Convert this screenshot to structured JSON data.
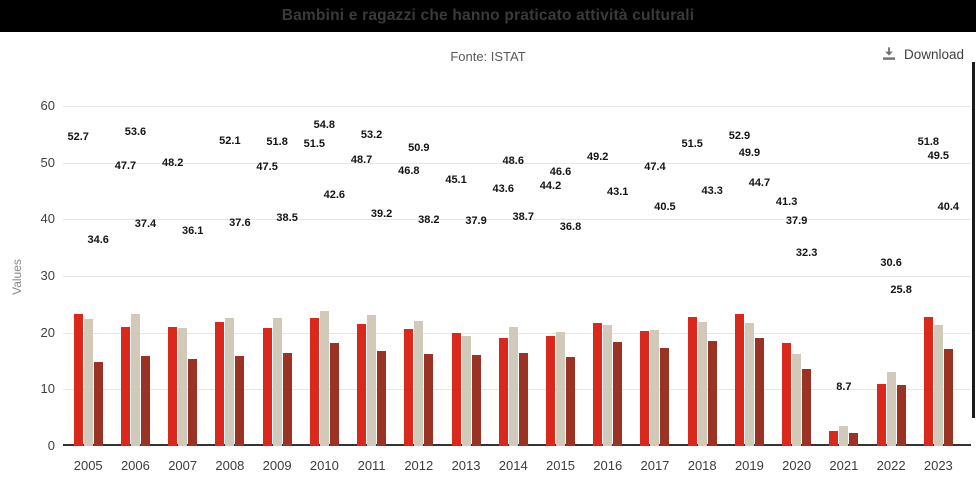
{
  "header": {
    "title": "Bambini e ragazzi che hanno praticato attività culturali",
    "source": "Fonte: ISTAT",
    "download_label": "Download",
    "download_icon": "download-icon"
  },
  "chart_data": {
    "type": "bar",
    "title": "Bambini e ragazzi che hanno praticato attività culturali",
    "xlabel": "",
    "ylabel": "Values",
    "ylim": [
      0,
      60
    ],
    "yticks": [
      0,
      10,
      20,
      30,
      40,
      50,
      60
    ],
    "grid": "horizontal",
    "legend_position": "none",
    "categories": [
      "2005",
      "2006",
      "2007",
      "2008",
      "2009",
      "2010",
      "2011",
      "2012",
      "2013",
      "2014",
      "2015",
      "2016",
      "2017",
      "2018",
      "2019",
      "2020",
      "2021",
      "2022",
      "2023"
    ],
    "series": [
      {
        "name": "series-red",
        "color": "#da291c",
        "bar_values": [
          23.3,
          21.0,
          21.0,
          21.9,
          20.8,
          22.6,
          21.5,
          20.6,
          19.9,
          19.1,
          19.4,
          21.7,
          20.3,
          22.8,
          23.3,
          18.2,
          2.6,
          10.9,
          22.8
        ]
      },
      {
        "name": "series-beige",
        "color": "#d1cabb",
        "bar_values": [
          22.4,
          23.3,
          20.8,
          22.6,
          22.6,
          23.8,
          23.1,
          22.0,
          19.4,
          21.0,
          20.1,
          21.3,
          20.5,
          21.9,
          21.7,
          16.3,
          3.5,
          13.1,
          21.3
        ]
      },
      {
        "name": "series-dark-red",
        "color": "#9a3324",
        "bar_values": [
          14.8,
          15.9,
          15.3,
          15.9,
          16.4,
          18.2,
          16.8,
          16.2,
          16.0,
          16.5,
          15.7,
          18.3,
          17.3,
          18.5,
          19.0,
          13.6,
          2.3,
          10.8,
          17.1
        ]
      }
    ],
    "point_labels": [
      [
        [
          0,
          52.7
        ],
        [
          2,
          34.6
        ]
      ],
      [
        [
          0,
          47.7
        ],
        [
          1,
          53.6
        ],
        [
          2,
          37.4
        ]
      ],
      [
        [
          0,
          48.2
        ],
        [
          2,
          36.1
        ]
      ],
      [
        [
          1,
          52.1
        ],
        [
          2,
          37.6
        ]
      ],
      [
        [
          0,
          47.5
        ],
        [
          1,
          51.8
        ],
        [
          2,
          38.5
        ]
      ],
      [
        [
          0,
          51.5
        ],
        [
          1,
          54.8
        ],
        [
          2,
          42.6
        ]
      ],
      [
        [
          0,
          48.7
        ],
        [
          1,
          53.2
        ],
        [
          2,
          39.2
        ]
      ],
      [
        [
          0,
          46.8
        ],
        [
          1,
          50.9
        ],
        [
          2,
          38.2
        ]
      ],
      [
        [
          0,
          45.1
        ],
        [
          2,
          37.9
        ]
      ],
      [
        [
          0,
          43.6
        ],
        [
          1,
          48.6
        ],
        [
          2,
          38.7
        ]
      ],
      [
        [
          0,
          44.2
        ],
        [
          1,
          46.6
        ],
        [
          2,
          36.8
        ]
      ],
      [
        [
          0,
          49.2
        ],
        [
          2,
          43.1
        ]
      ],
      [
        [
          1,
          47.4
        ],
        [
          2,
          40.5
        ]
      ],
      [
        [
          0,
          51.5
        ],
        [
          2,
          43.3
        ]
      ],
      [
        [
          0,
          52.9
        ],
        [
          1,
          49.9
        ],
        [
          2,
          44.7
        ]
      ],
      [
        [
          0,
          41.3
        ],
        [
          1,
          37.9
        ],
        [
          2,
          32.3
        ]
      ],
      [
        [
          1,
          8.7
        ]
      ],
      [
        [
          1,
          30.6
        ],
        [
          2,
          25.8
        ]
      ],
      [
        [
          0,
          51.8
        ],
        [
          1,
          49.5
        ],
        [
          2,
          40.4
        ]
      ]
    ]
  }
}
